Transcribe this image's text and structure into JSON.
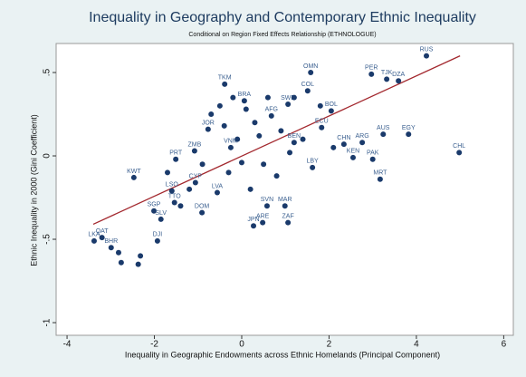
{
  "chart_data": {
    "type": "scatter",
    "title": "Inequality in Geography and Contemporary Ethnic Inequality",
    "subtitle": "Conditional on Region Fixed Effects Relationship (ETHNOLOGUE)",
    "xlabel": "Inequality in Geographic Endowments across Ethnic Homelands (Principal Component)",
    "ylabel": "Ethnic Inequality in 2000 (Gini Coefficient)",
    "color": "#1a3a6b",
    "x": [
      4.23,
      2.97,
      3.32,
      3.59,
      1.58,
      1.51,
      1.06,
      -0.39,
      2.05,
      1.83,
      3.24,
      3.82,
      4.98,
      2.34,
      2.76,
      2.55,
      3.0,
      3.17,
      1.62,
      0.58,
      0.99,
      0.48,
      1.06,
      0.27,
      -2.99,
      -3.2,
      -3.38,
      -2.47,
      -1.6,
      -2.01,
      -1.85,
      -1.93,
      -0.91,
      -0.56,
      -1.06,
      -1.51,
      -1.08,
      -0.77,
      0.06,
      0.68,
      -0.25,
      -1.54,
      1.2,
      -2.82,
      -2.76,
      -2.37,
      -2.32,
      -0.5,
      -0.2,
      0.3,
      0.9,
      1.1,
      0.5,
      -0.3,
      -1.2,
      0.8,
      1.4,
      -0.1,
      0.2,
      -0.7,
      1.2,
      0.4,
      -1.7,
      -0.9,
      0.1,
      1.8,
      -0.4,
      0.6,
      2.1,
      -1.4,
      0.0
    ],
    "values": [
      0.6,
      0.49,
      0.46,
      0.45,
      0.5,
      0.39,
      0.31,
      0.43,
      0.27,
      0.17,
      0.13,
      0.13,
      0.02,
      0.07,
      0.08,
      -0.01,
      -0.02,
      -0.14,
      -0.07,
      -0.3,
      -0.3,
      -0.4,
      -0.4,
      -0.42,
      -0.55,
      -0.49,
      -0.51,
      -0.13,
      -0.21,
      -0.33,
      -0.38,
      -0.51,
      -0.34,
      -0.22,
      -0.16,
      -0.02,
      0.03,
      0.16,
      0.33,
      0.24,
      0.05,
      -0.28,
      0.08,
      -0.58,
      -0.64,
      -0.65,
      -0.6,
      0.3,
      0.35,
      0.2,
      0.15,
      0.02,
      -0.05,
      -0.1,
      -0.2,
      -0.12,
      0.1,
      0.1,
      -0.2,
      0.25,
      0.35,
      0.12,
      -0.1,
      -0.05,
      0.28,
      0.3,
      0.18,
      0.35,
      0.05,
      -0.3,
      -0.04
    ],
    "labels": [
      "RUS",
      "PER",
      "TJK",
      "DZA",
      "OMN",
      "COL",
      "SWE",
      "TKM",
      "BOL",
      "ECU",
      "AUS",
      "EGY",
      "CHL",
      "CHN",
      "ARG",
      "KEN",
      "PAK",
      "MRT",
      "LBY",
      "SVN",
      "MAR",
      "ARE",
      "ZAF",
      "JPN",
      "BHR",
      "QAT",
      "LKA",
      "KWT",
      "LSO",
      "SGP",
      "SLV",
      "DJI",
      "DOM",
      "LVA",
      "CYP",
      "PRT",
      "ZMB",
      "JOR",
      "BRA",
      "AFG",
      "VNM",
      "TTO",
      "BEN",
      null,
      null,
      null,
      null,
      null,
      null,
      null,
      null,
      null,
      null,
      null,
      null,
      null,
      null,
      null,
      null,
      null,
      null,
      null,
      null,
      null,
      null,
      null,
      null,
      null,
      null,
      null,
      null
    ],
    "fit_line": {
      "x": [
        -3.4,
        5.0
      ],
      "values": [
        -0.41,
        0.6
      ],
      "color": "#a3282e"
    },
    "xlim": [
      -4.25,
      6.22
    ],
    "ylim": [
      -1.076,
      0.674
    ],
    "xticks": [
      -4,
      -2,
      0,
      2,
      4,
      6
    ],
    "yticks": [
      {
        "value": 0.5,
        "label": ".5"
      },
      0,
      {
        "value": -0.5,
        "label": "-.5"
      },
      -1
    ]
  }
}
